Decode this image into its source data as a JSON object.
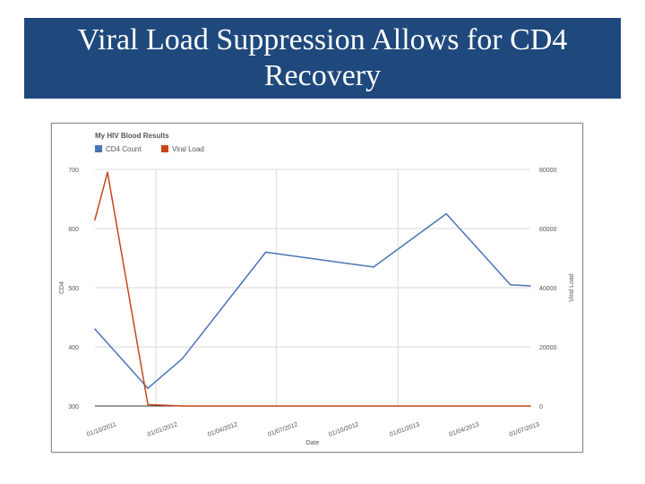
{
  "slide": {
    "title": "Viral Load Suppression Allows for CD4 Recovery"
  },
  "colors": {
    "banner": "#1f497d",
    "cd4": "#4a74b8",
    "viral": "#c8441a",
    "grid": "#d9d9d9"
  },
  "chart_data": {
    "type": "line",
    "title": "My HIV Blood Results",
    "xlabel": "Date",
    "ylabel_left": "CD4",
    "ylabel_right": "Viral Load",
    "legend_position": "top-left",
    "grid": true,
    "y_left": {
      "min": 300,
      "max": 700,
      "ticks": [
        "300",
        "400",
        "500",
        "600",
        "700"
      ]
    },
    "y_right": {
      "min": 0,
      "max": 80000,
      "ticks": [
        "0",
        "20000",
        "40000",
        "60000",
        "80000"
      ]
    },
    "x_range": [
      "2011-10-01",
      "2013-07-20"
    ],
    "x_ticks": [
      {
        "date": "2011-10-01",
        "label": "01/10/2011"
      },
      {
        "date": "2012-01-01",
        "label": "01/01/2012"
      },
      {
        "date": "2012-04-01",
        "label": "01/04/2012"
      },
      {
        "date": "2012-07-01",
        "label": "01/07/2012"
      },
      {
        "date": "2012-10-01",
        "label": "01/10/2012"
      },
      {
        "date": "2013-01-01",
        "label": "01/01/2013"
      },
      {
        "date": "2013-04-01",
        "label": "01/04/2013"
      },
      {
        "date": "2013-07-01",
        "label": "01/07/2013"
      }
    ],
    "gridline_dates": [
      "2012-01-01",
      "2012-07-01",
      "2013-01-01"
    ],
    "series": [
      {
        "name": "CD4 Count",
        "axis": "left",
        "points": [
          {
            "x": "2011-10-01",
            "y": 430
          },
          {
            "x": "2011-12-20",
            "y": 330
          },
          {
            "x": "2012-02-10",
            "y": 380
          },
          {
            "x": "2012-06-15",
            "y": 560
          },
          {
            "x": "2012-11-25",
            "y": 535
          },
          {
            "x": "2013-03-15",
            "y": 625
          },
          {
            "x": "2013-06-20",
            "y": 505
          },
          {
            "x": "2013-07-20",
            "y": 503
          }
        ]
      },
      {
        "name": "Viral Load",
        "axis": "right",
        "points": [
          {
            "x": "2011-10-01",
            "y": 63000
          },
          {
            "x": "2011-10-20",
            "y": 79000
          },
          {
            "x": "2011-12-20",
            "y": 500
          },
          {
            "x": "2012-02-10",
            "y": 0
          },
          {
            "x": "2013-07-20",
            "y": 0
          }
        ]
      }
    ]
  }
}
